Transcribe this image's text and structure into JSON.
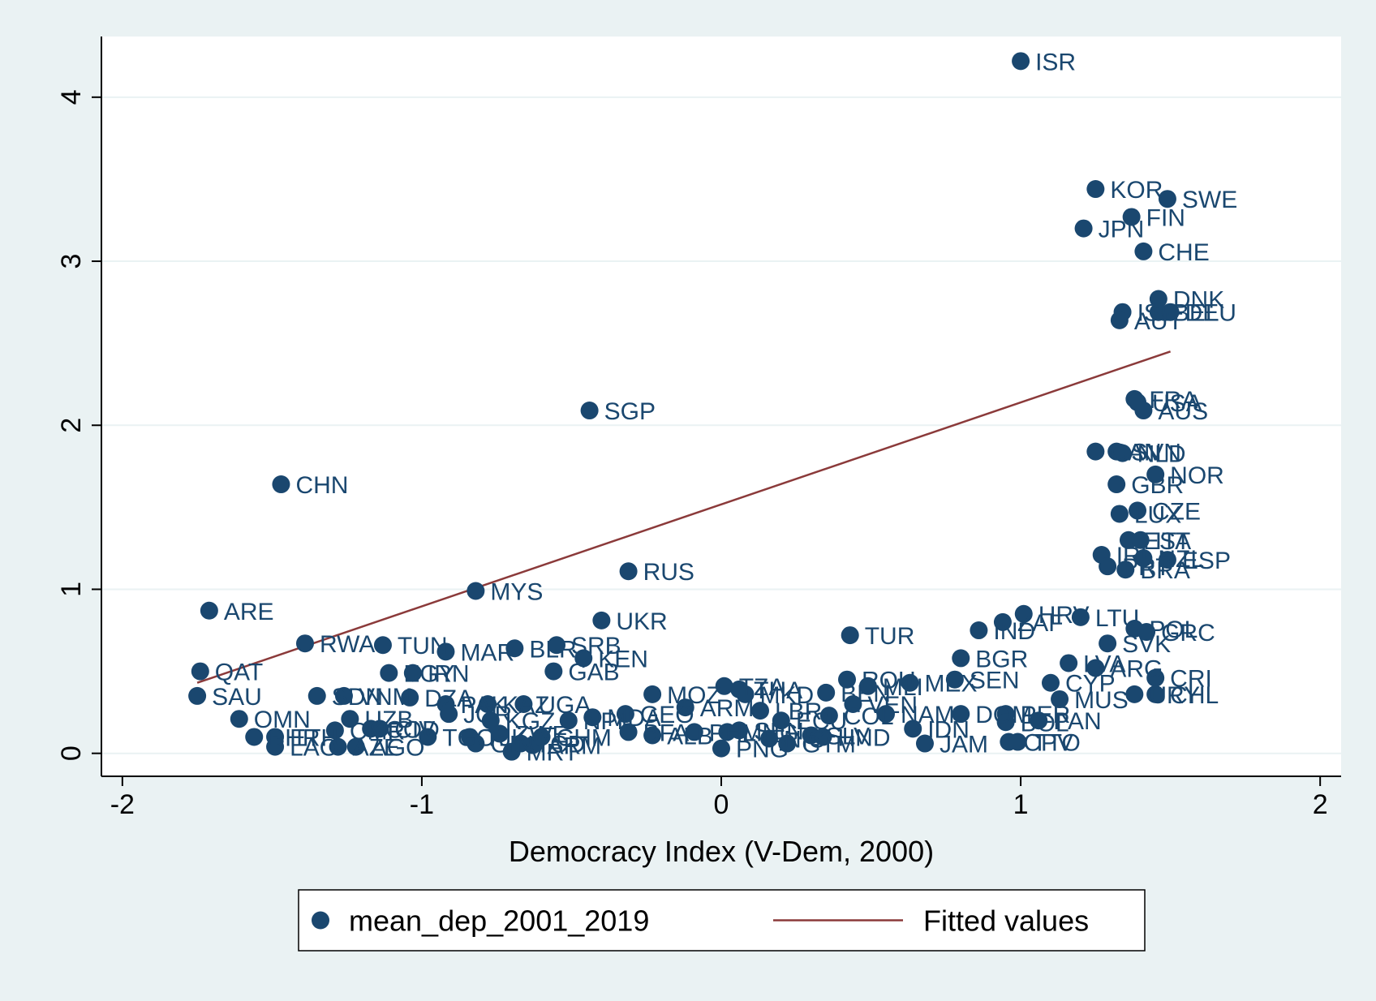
{
  "chart_data": {
    "type": "scatter",
    "xlabel": "Democracy Index (V-Dem, 2000)",
    "ylabel": "",
    "xlim": [
      -2.07,
      2.07
    ],
    "ylim": [
      -0.14,
      4.37
    ],
    "x_ticks": [
      -2,
      -1,
      0,
      1,
      2
    ],
    "y_ticks": [
      0,
      1,
      2,
      3,
      4
    ],
    "grid": "horizontal",
    "legend_position": "bottom",
    "colors": {
      "marker": "#1a476f",
      "fit_line": "#8b3a3a",
      "plot_bg": "#ffffff",
      "outer_bg": "#eaf2f3",
      "gridline": "#eaf2f3"
    },
    "series": [
      {
        "name": "mean_dep_2001_2019",
        "kind": "scatter",
        "points": [
          {
            "x": 1.0,
            "y": 4.22,
            "label": "ISR"
          },
          {
            "x": 1.25,
            "y": 3.44,
            "label": "KOR"
          },
          {
            "x": 1.49,
            "y": 3.38,
            "label": "SWE"
          },
          {
            "x": 1.37,
            "y": 3.27,
            "label": "FIN"
          },
          {
            "x": 1.21,
            "y": 3.2,
            "label": "JPN"
          },
          {
            "x": 1.41,
            "y": 3.06,
            "label": "CHE"
          },
          {
            "x": 1.46,
            "y": 2.77,
            "label": "DNK"
          },
          {
            "x": 1.34,
            "y": 2.69,
            "label": "ISL"
          },
          {
            "x": 1.46,
            "y": 2.69,
            "label": "BEL"
          },
          {
            "x": 1.5,
            "y": 2.69,
            "label": "DEU"
          },
          {
            "x": 1.33,
            "y": 2.64,
            "label": "AUT"
          },
          {
            "x": 1.38,
            "y": 2.16,
            "label": "FRA"
          },
          {
            "x": 1.39,
            "y": 2.14,
            "label": "USA"
          },
          {
            "x": 1.41,
            "y": 2.09,
            "label": "AUS"
          },
          {
            "x": 1.25,
            "y": 1.84,
            "label": "CAN"
          },
          {
            "x": 1.32,
            "y": 1.84,
            "label": "SVN"
          },
          {
            "x": 1.34,
            "y": 1.83,
            "label": "NLD"
          },
          {
            "x": 1.45,
            "y": 1.7,
            "label": "NOR"
          },
          {
            "x": 1.32,
            "y": 1.64,
            "label": "GBR"
          },
          {
            "x": 1.39,
            "y": 1.48,
            "label": "CZE"
          },
          {
            "x": 1.33,
            "y": 1.46,
            "label": "LUX"
          },
          {
            "x": 1.36,
            "y": 1.3,
            "label": "EST"
          },
          {
            "x": 1.4,
            "y": 1.3,
            "label": "ITA"
          },
          {
            "x": 1.27,
            "y": 1.21,
            "label": "IRL"
          },
          {
            "x": 1.41,
            "y": 1.19,
            "label": "NZL"
          },
          {
            "x": 1.49,
            "y": 1.18,
            "label": "ESP"
          },
          {
            "x": 1.29,
            "y": 1.14,
            "label": "PRT"
          },
          {
            "x": 1.35,
            "y": 1.12,
            "label": "BRA"
          },
          {
            "x": -0.44,
            "y": 2.09,
            "label": "SGP"
          },
          {
            "x": -1.47,
            "y": 1.64,
            "label": "CHN"
          },
          {
            "x": -0.31,
            "y": 1.11,
            "label": "RUS"
          },
          {
            "x": -0.82,
            "y": 0.99,
            "label": "MYS"
          },
          {
            "x": -1.71,
            "y": 0.87,
            "label": "ARE"
          },
          {
            "x": -0.4,
            "y": 0.81,
            "label": "UKR"
          },
          {
            "x": -1.39,
            "y": 0.67,
            "label": "RWA"
          },
          {
            "x": -1.13,
            "y": 0.66,
            "label": "TUN"
          },
          {
            "x": -0.92,
            "y": 0.62,
            "label": "MAR"
          },
          {
            "x": -0.69,
            "y": 0.64,
            "label": "BLR"
          },
          {
            "x": -0.55,
            "y": 0.66,
            "label": "SRB"
          },
          {
            "x": -0.46,
            "y": 0.58,
            "label": "KEN"
          },
          {
            "x": -0.56,
            "y": 0.5,
            "label": "GAB"
          },
          {
            "x": -1.74,
            "y": 0.5,
            "label": "QAT"
          },
          {
            "x": -1.11,
            "y": 0.49,
            "label": "EGY"
          },
          {
            "x": -1.03,
            "y": 0.49,
            "label": "IRN"
          },
          {
            "x": -1.75,
            "y": 0.35,
            "label": "SAU"
          },
          {
            "x": -1.35,
            "y": 0.35,
            "label": "SDN"
          },
          {
            "x": -1.26,
            "y": 0.35,
            "label": "VNM"
          },
          {
            "x": -1.04,
            "y": 0.34,
            "label": "DZA"
          },
          {
            "x": -0.92,
            "y": 0.3,
            "label": "PAK"
          },
          {
            "x": -0.78,
            "y": 0.3,
            "label": "KAZ"
          },
          {
            "x": -0.66,
            "y": 0.3,
            "label": "UGA"
          },
          {
            "x": -1.61,
            "y": 0.21,
            "label": "OMN"
          },
          {
            "x": -1.24,
            "y": 0.21,
            "label": "UZB"
          },
          {
            "x": -1.56,
            "y": 0.1,
            "label": "BHR"
          },
          {
            "x": -1.49,
            "y": 0.1,
            "label": "ETH"
          },
          {
            "x": -1.29,
            "y": 0.14,
            "label": "CMR"
          },
          {
            "x": -1.17,
            "y": 0.15,
            "label": "COD"
          },
          {
            "x": -1.14,
            "y": 0.15,
            "label": "CIV"
          },
          {
            "x": -0.98,
            "y": 0.1,
            "label": "TGO"
          },
          {
            "x": -1.49,
            "y": 0.04,
            "label": "LAO"
          },
          {
            "x": -1.28,
            "y": 0.04,
            "label": "AZE"
          },
          {
            "x": -1.22,
            "y": 0.04,
            "label": "AGO"
          },
          {
            "x": -0.91,
            "y": 0.24,
            "label": "JOR"
          },
          {
            "x": -0.84,
            "y": 0.1,
            "label": "TJK"
          },
          {
            "x": -0.82,
            "y": 0.06,
            "label": "GIN"
          },
          {
            "x": -0.77,
            "y": 0.2,
            "label": "KGZ"
          },
          {
            "x": -0.74,
            "y": 0.12,
            "label": "ZWE"
          },
          {
            "x": -0.7,
            "y": 0.01,
            "label": "MRT"
          },
          {
            "x": -0.67,
            "y": 0.06,
            "label": "TCD"
          },
          {
            "x": -0.63,
            "y": 0.05,
            "label": "ARM"
          },
          {
            "x": -0.6,
            "y": 0.1,
            "label": "CHM"
          },
          {
            "x": -0.51,
            "y": 0.2,
            "label": "NPL"
          },
          {
            "x": -0.43,
            "y": 0.22,
            "label": "MDA"
          },
          {
            "x": -0.32,
            "y": 0.24,
            "label": "GEO"
          },
          {
            "x": -0.31,
            "y": 0.13,
            "label": "BFA"
          },
          {
            "x": -0.23,
            "y": 0.11,
            "label": "ALB"
          },
          {
            "x": -0.23,
            "y": 0.36,
            "label": "MOZ"
          },
          {
            "x": -0.12,
            "y": 0.28,
            "label": "ARM"
          },
          {
            "x": -0.09,
            "y": 0.13,
            "label": "PHL"
          },
          {
            "x": 0.01,
            "y": 0.41,
            "label": "TZA"
          },
          {
            "x": 0.06,
            "y": 0.39,
            "label": "THA"
          },
          {
            "x": 0.08,
            "y": 0.36,
            "label": "MKD"
          },
          {
            "x": 0.13,
            "y": 0.26,
            "label": "LBR"
          },
          {
            "x": 0.02,
            "y": 0.13,
            "label": "MNG"
          },
          {
            "x": 0.0,
            "y": 0.03,
            "label": "PNG"
          },
          {
            "x": 0.06,
            "y": 0.14,
            "label": "SEN"
          },
          {
            "x": 0.2,
            "y": 0.2,
            "label": "ECU"
          },
          {
            "x": 0.16,
            "y": 0.09,
            "label": "NIC"
          },
          {
            "x": 0.22,
            "y": 0.06,
            "label": "GTM"
          },
          {
            "x": 0.3,
            "y": 0.11,
            "label": "SLV"
          },
          {
            "x": 0.34,
            "y": 0.1,
            "label": "HND"
          },
          {
            "x": 0.35,
            "y": 0.37,
            "label": "BEN"
          },
          {
            "x": 0.36,
            "y": 0.23,
            "label": "COL"
          },
          {
            "x": 0.43,
            "y": 0.72,
            "label": "TUR"
          },
          {
            "x": 0.42,
            "y": 0.45,
            "label": "ROU"
          },
          {
            "x": 0.44,
            "y": 0.3,
            "label": "VEN"
          },
          {
            "x": 0.49,
            "y": 0.41,
            "label": "MLI"
          },
          {
            "x": 0.55,
            "y": 0.24,
            "label": "NAM"
          },
          {
            "x": 0.63,
            "y": 0.43,
            "label": "MEX"
          },
          {
            "x": 0.64,
            "y": 0.15,
            "label": "IDN"
          },
          {
            "x": 0.68,
            "y": 0.06,
            "label": "JAM"
          },
          {
            "x": 0.78,
            "y": 0.45,
            "label": "SEN"
          },
          {
            "x": 0.8,
            "y": 0.24,
            "label": "DOM"
          },
          {
            "x": 0.8,
            "y": 0.58,
            "label": "BGR"
          },
          {
            "x": 0.86,
            "y": 0.75,
            "label": "IND"
          },
          {
            "x": 0.94,
            "y": 0.8,
            "label": "ZAF"
          },
          {
            "x": 0.95,
            "y": 0.24,
            "label": "PER"
          },
          {
            "x": 0.95,
            "y": 0.19,
            "label": "BOL"
          },
          {
            "x": 0.96,
            "y": 0.07,
            "label": "CPV"
          },
          {
            "x": 0.99,
            "y": 0.07,
            "label": "TTO"
          },
          {
            "x": 1.01,
            "y": 0.85,
            "label": "HRV"
          },
          {
            "x": 1.1,
            "y": 0.43,
            "label": "CYP"
          },
          {
            "x": 1.13,
            "y": 0.33,
            "label": "MUS"
          },
          {
            "x": 1.16,
            "y": 0.55,
            "label": "LVA"
          },
          {
            "x": 1.2,
            "y": 0.83,
            "label": "LTU"
          },
          {
            "x": 1.25,
            "y": 0.52,
            "label": "ARG"
          },
          {
            "x": 1.29,
            "y": 0.67,
            "label": "SVK"
          },
          {
            "x": 1.38,
            "y": 0.76,
            "label": "POL"
          },
          {
            "x": 1.42,
            "y": 0.74,
            "label": "GRC"
          },
          {
            "x": 1.38,
            "y": 0.36,
            "label": "URY"
          },
          {
            "x": 1.45,
            "y": 0.46,
            "label": "CRI"
          },
          {
            "x": 1.45,
            "y": 0.36,
            "label": "CHL"
          },
          {
            "x": 1.06,
            "y": 0.2,
            "label": "PAN"
          }
        ]
      },
      {
        "name": "Fitted values",
        "kind": "line",
        "points": [
          {
            "x": -1.75,
            "y": 0.43
          },
          {
            "x": 1.5,
            "y": 2.45
          }
        ]
      }
    ]
  }
}
